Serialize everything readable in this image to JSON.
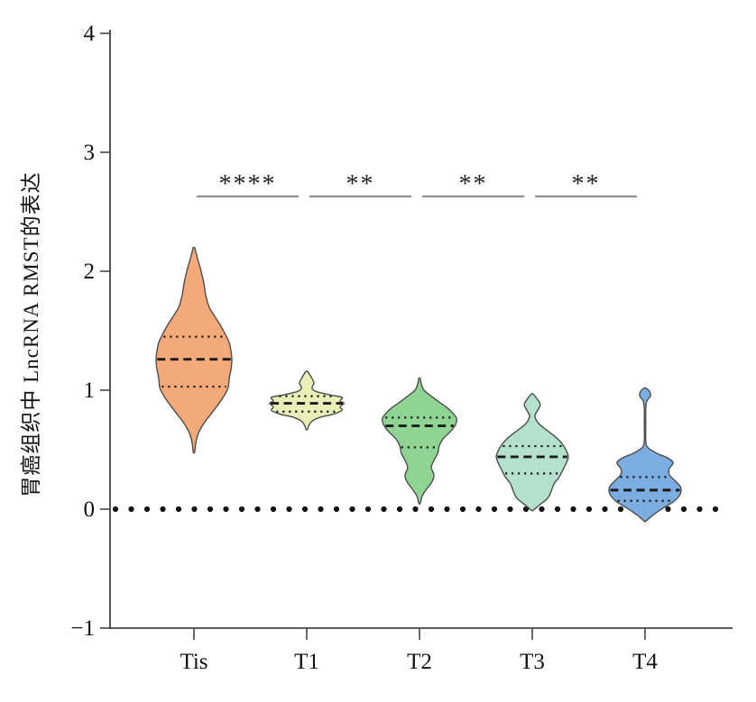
{
  "figure": {
    "background": "#ffffff"
  },
  "chart_data": {
    "type": "violin",
    "title": "",
    "xlabel": "",
    "ylabel": "胃癌组织中 LncRNA RMST的表达",
    "categories": [
      "Tis",
      "T1",
      "T2",
      "T3",
      "T4"
    ],
    "ylim": [
      -1,
      4
    ],
    "yticks": [
      4,
      3,
      2,
      1,
      0,
      -1
    ],
    "ytick_labels": [
      "4",
      "3",
      "2",
      "1",
      "0",
      "−1"
    ],
    "grid": false,
    "legend": "none",
    "zero_baseline": {
      "value": 0,
      "style": "bold-dotted",
      "color": "#111111"
    },
    "groups": [
      {
        "name": "Tis",
        "color": "#F4A979",
        "median": 1.26,
        "q1": 1.03,
        "q3": 1.45,
        "min": 0.48,
        "max": 2.2,
        "profile": [
          [
            2.2,
            0.02
          ],
          [
            2.1,
            0.1
          ],
          [
            2.0,
            0.19
          ],
          [
            1.9,
            0.26
          ],
          [
            1.8,
            0.31
          ],
          [
            1.7,
            0.4
          ],
          [
            1.62,
            0.55
          ],
          [
            1.55,
            0.69
          ],
          [
            1.48,
            0.81
          ],
          [
            1.4,
            0.93
          ],
          [
            1.32,
            0.98
          ],
          [
            1.26,
            1.0
          ],
          [
            1.18,
            0.98
          ],
          [
            1.1,
            0.93
          ],
          [
            1.02,
            0.9
          ],
          [
            0.95,
            0.79
          ],
          [
            0.88,
            0.64
          ],
          [
            0.8,
            0.45
          ],
          [
            0.72,
            0.26
          ],
          [
            0.64,
            0.12
          ],
          [
            0.56,
            0.05
          ],
          [
            0.48,
            0.02
          ]
        ]
      },
      {
        "name": "T1",
        "color": "#E9EFB6",
        "median": 0.89,
        "q1": 0.82,
        "q3": 0.95,
        "min": 0.67,
        "max": 1.16,
        "profile": [
          [
            1.16,
            0.02
          ],
          [
            1.11,
            0.12
          ],
          [
            1.06,
            0.19
          ],
          [
            1.02,
            0.14
          ],
          [
            0.99,
            0.24
          ],
          [
            0.96,
            0.62
          ],
          [
            0.94,
            0.93
          ],
          [
            0.91,
            0.88
          ],
          [
            0.89,
            0.98
          ],
          [
            0.86,
            0.88
          ],
          [
            0.83,
            0.93
          ],
          [
            0.8,
            0.71
          ],
          [
            0.77,
            0.33
          ],
          [
            0.74,
            0.14
          ],
          [
            0.7,
            0.05
          ],
          [
            0.67,
            0.02
          ]
        ]
      },
      {
        "name": "T2",
        "color": "#90D494",
        "median": 0.7,
        "q1": 0.52,
        "q3": 0.77,
        "min": 0.05,
        "max": 1.1,
        "profile": [
          [
            1.1,
            0.02
          ],
          [
            1.05,
            0.05
          ],
          [
            1.0,
            0.12
          ],
          [
            0.95,
            0.31
          ],
          [
            0.9,
            0.52
          ],
          [
            0.85,
            0.74
          ],
          [
            0.8,
            0.9
          ],
          [
            0.76,
            0.98
          ],
          [
            0.71,
            0.95
          ],
          [
            0.65,
            0.81
          ],
          [
            0.59,
            0.62
          ],
          [
            0.53,
            0.52
          ],
          [
            0.47,
            0.48
          ],
          [
            0.41,
            0.38
          ],
          [
            0.35,
            0.31
          ],
          [
            0.29,
            0.38
          ],
          [
            0.23,
            0.33
          ],
          [
            0.17,
            0.19
          ],
          [
            0.11,
            0.07
          ],
          [
            0.05,
            0.02
          ]
        ]
      },
      {
        "name": "T3",
        "color": "#B4E1CC",
        "median": 0.44,
        "q1": 0.3,
        "q3": 0.53,
        "min": 0.0,
        "max": 0.97,
        "profile": [
          [
            0.97,
            0.02
          ],
          [
            0.93,
            0.12
          ],
          [
            0.88,
            0.21
          ],
          [
            0.83,
            0.14
          ],
          [
            0.78,
            0.07
          ],
          [
            0.72,
            0.17
          ],
          [
            0.66,
            0.4
          ],
          [
            0.6,
            0.64
          ],
          [
            0.54,
            0.81
          ],
          [
            0.49,
            0.9
          ],
          [
            0.44,
            0.95
          ],
          [
            0.39,
            0.9
          ],
          [
            0.33,
            0.81
          ],
          [
            0.27,
            0.71
          ],
          [
            0.21,
            0.57
          ],
          [
            0.15,
            0.5
          ],
          [
            0.09,
            0.4
          ],
          [
            0.03,
            0.17
          ],
          [
            -0.01,
            0.02
          ]
        ]
      },
      {
        "name": "T4",
        "color": "#7BADE0",
        "median": 0.16,
        "q1": 0.07,
        "q3": 0.27,
        "min": -0.1,
        "max": 1.02,
        "profile": [
          [
            1.02,
            0.02
          ],
          [
            0.99,
            0.12
          ],
          [
            0.95,
            0.14
          ],
          [
            0.91,
            0.05
          ],
          [
            0.85,
            0.02
          ],
          [
            0.7,
            0.02
          ],
          [
            0.58,
            0.02
          ],
          [
            0.52,
            0.07
          ],
          [
            0.47,
            0.31
          ],
          [
            0.43,
            0.6
          ],
          [
            0.39,
            0.74
          ],
          [
            0.34,
            0.64
          ],
          [
            0.29,
            0.64
          ],
          [
            0.24,
            0.79
          ],
          [
            0.19,
            0.93
          ],
          [
            0.15,
            0.95
          ],
          [
            0.11,
            0.9
          ],
          [
            0.06,
            0.74
          ],
          [
            0.01,
            0.48
          ],
          [
            -0.05,
            0.21
          ],
          [
            -0.1,
            0.02
          ]
        ]
      }
    ],
    "comparisons": [
      {
        "from": "Tis",
        "to": "T1",
        "label": "****"
      },
      {
        "from": "T1",
        "to": "T2",
        "label": "**"
      },
      {
        "from": "T2",
        "to": "T3",
        "label": "**"
      },
      {
        "from": "T3",
        "to": "T4",
        "label": "**"
      }
    ],
    "style": {
      "edge_color": "#4d4d4d",
      "median_color": "#1a1a1a",
      "quartile_color": "#1a1a1a",
      "bracket_color": "#8f8f8f",
      "star_color": "#222222",
      "axis_color": "#444444",
      "tick_label_color": "#111111"
    }
  }
}
